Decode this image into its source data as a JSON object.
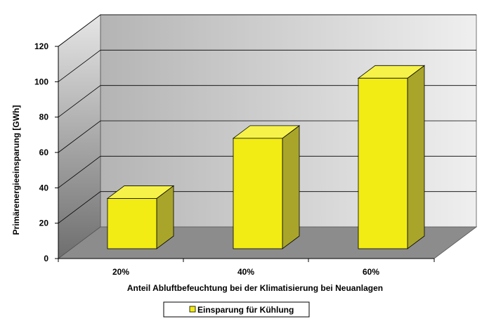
{
  "chart_data": {
    "type": "bar",
    "categories": [
      "20%",
      "40%",
      "60%"
    ],
    "series": [
      {
        "name": "Einsparung für Kühlung",
        "values": [
          34,
          68,
          102
        ]
      }
    ],
    "xlabel": "Anteil Abluftbefeuchtung bei der Klimatisierung bei Neuanlagen",
    "ylabel": "Primärenergieeinsparung  [GWh]",
    "ylim": [
      0,
      120
    ],
    "yticks": [
      0,
      20,
      40,
      60,
      80,
      100,
      120
    ],
    "grid": true,
    "legend_position": "bottom",
    "three_d": true
  },
  "colors": {
    "bar_front": "#F2EC14",
    "bar_top": "#F6F24A",
    "bar_side": "#A9A52A",
    "back_wall": "#C8C8C8",
    "side_wall": "#9A9A9A",
    "floor": "#8C8C8C"
  }
}
